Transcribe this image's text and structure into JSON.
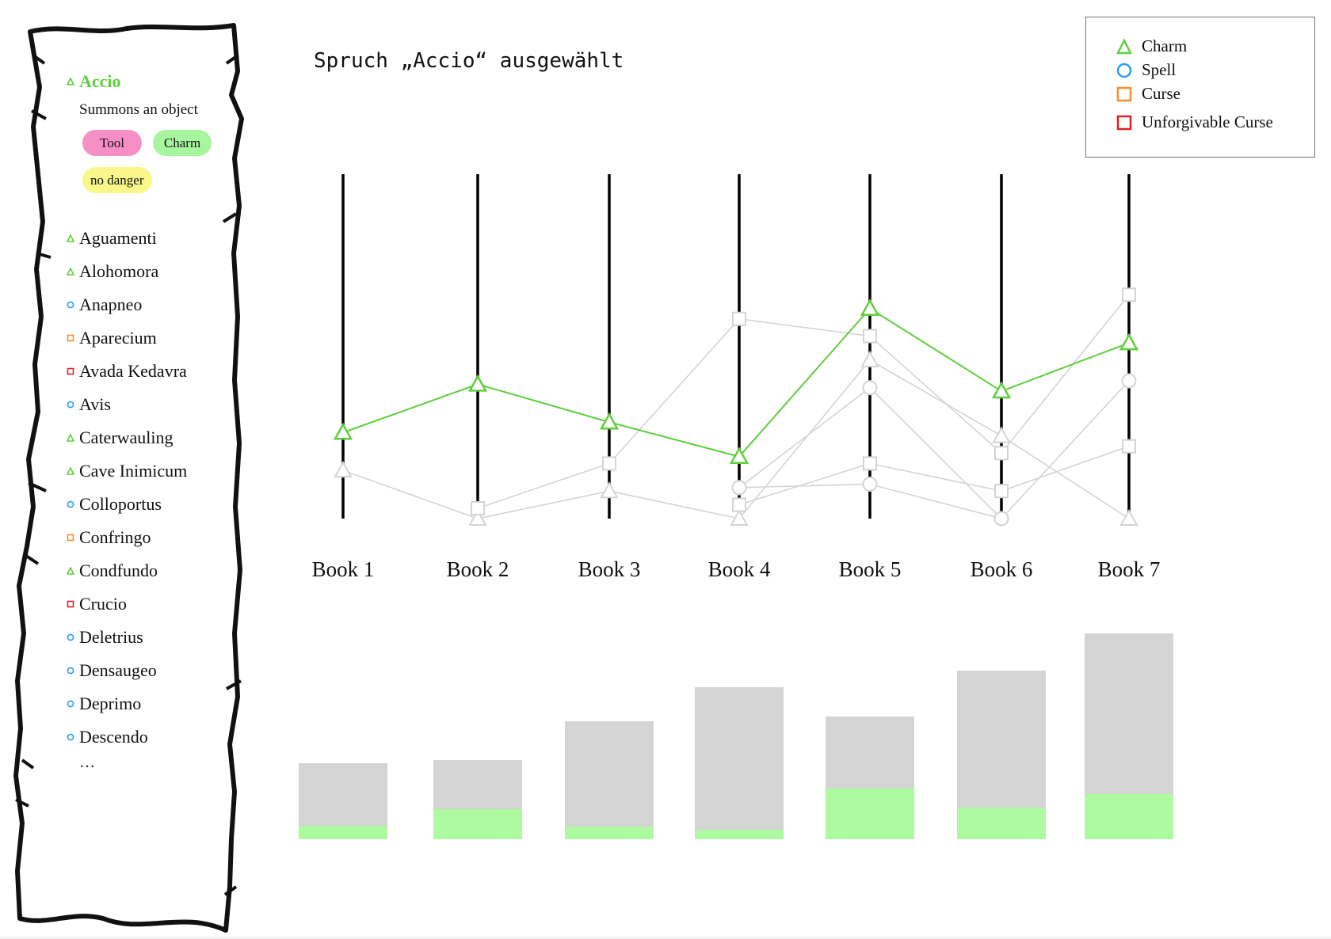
{
  "status_text": "Spruch „Accio“ ausgewählt",
  "selected": {
    "name": "Accio",
    "type": "charm",
    "description": "Summons an object",
    "tags": [
      "Tool",
      "Charm",
      "no danger"
    ]
  },
  "spell_list": [
    {
      "name": "Aguamenti",
      "type": "charm"
    },
    {
      "name": "Alohomora",
      "type": "charm"
    },
    {
      "name": "Anapneo",
      "type": "spell"
    },
    {
      "name": "Aparecium",
      "type": "curse"
    },
    {
      "name": "Avada Kedavra",
      "type": "unforgivable"
    },
    {
      "name": "Avis",
      "type": "spell"
    },
    {
      "name": "Caterwauling",
      "type": "charm"
    },
    {
      "name": "Cave Inimicum",
      "type": "charm"
    },
    {
      "name": "Colloportus",
      "type": "spell"
    },
    {
      "name": "Confringo",
      "type": "curse"
    },
    {
      "name": "Condfundo",
      "type": "charm"
    },
    {
      "name": "Crucio",
      "type": "unforgivable"
    },
    {
      "name": "Deletrius",
      "type": "spell"
    },
    {
      "name": "Densaugeo",
      "type": "spell"
    },
    {
      "name": "Deprimo",
      "type": "spell"
    },
    {
      "name": "Descendo",
      "type": "spell"
    }
  ],
  "list_more": "…",
  "legend": [
    {
      "label": "Charm",
      "type": "charm"
    },
    {
      "label": "Spell",
      "type": "spell"
    },
    {
      "label": "Curse",
      "type": "curse"
    },
    {
      "label": "Unforgivable Curse",
      "type": "unforgivable"
    }
  ],
  "colors": {
    "charm": "#5dcf3c",
    "spell": "#2a9df4",
    "curse": "#f5902a",
    "unforgivable": "#e02020",
    "inactive": "#d4d4d4",
    "bar_highlight": "#aefaa0",
    "axis": "#000000"
  },
  "chart_data": [
    {
      "type": "line",
      "description_of_scale": "relative usage per book, 0 = bottom of axis, 1 = top",
      "categories": [
        "Book 1",
        "Book 2",
        "Book 3",
        "Book 4",
        "Book 5",
        "Book 6",
        "Book 7"
      ],
      "series": [
        {
          "name": "Accio",
          "type": "charm",
          "highlighted": true,
          "values": [
            0.25,
            0.39,
            0.28,
            0.18,
            0.61,
            0.37,
            0.51
          ]
        },
        {
          "type": "charm",
          "values": [
            0.14,
            0.0,
            0.08,
            0.0,
            0.46,
            0.24,
            0.0
          ]
        },
        {
          "type": "curse",
          "values": [
            null,
            0.03,
            0.16,
            0.58,
            0.53,
            0.19,
            0.65
          ]
        },
        {
          "type": "spell",
          "values": [
            null,
            null,
            null,
            0.09,
            0.38,
            0.0,
            0.4
          ]
        },
        {
          "type": "curse",
          "values": [
            null,
            null,
            null,
            0.04,
            0.16,
            0.08,
            0.21
          ]
        },
        {
          "type": "spell",
          "values": [
            null,
            null,
            null,
            0.09,
            0.1,
            0.0,
            null
          ]
        }
      ]
    },
    {
      "type": "bar",
      "stacked": true,
      "categories": [
        "Book 1",
        "Book 2",
        "Book 3",
        "Book 4",
        "Book 5",
        "Book 6",
        "Book 7"
      ],
      "series": [
        {
          "highlighted": true,
          "values": [
            17,
            38,
            16,
            12,
            64,
            40,
            57
          ]
        },
        {
          "values": [
            79,
            62,
            133,
            180,
            91,
            173,
            203
          ]
        }
      ]
    }
  ]
}
